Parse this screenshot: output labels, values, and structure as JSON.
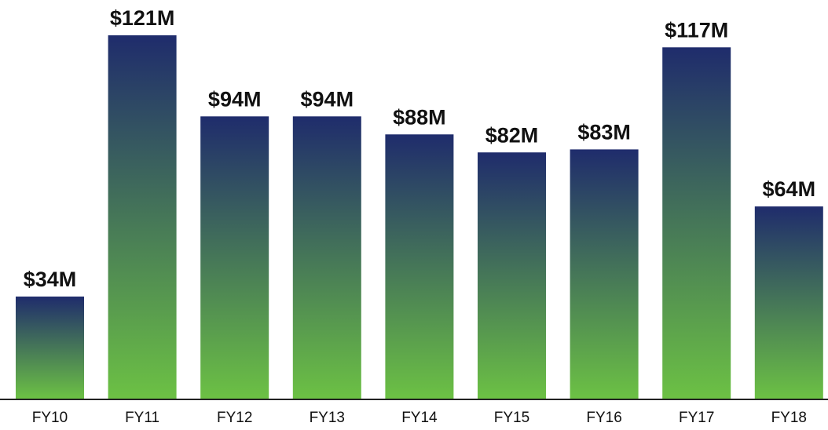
{
  "chart_data": {
    "type": "bar",
    "categories": [
      "FY10",
      "FY11",
      "FY12",
      "FY13",
      "FY14",
      "FY15",
      "FY16",
      "FY17",
      "FY18"
    ],
    "values": [
      34,
      121,
      94,
      94,
      88,
      82,
      83,
      117,
      64
    ],
    "value_labels": [
      "$34M",
      "$121M",
      "$94M",
      "$94M",
      "$88M",
      "$82M",
      "$83M",
      "$117M",
      "$64M"
    ],
    "gradient": [
      "#1f2c6c",
      "#6cc144"
    ]
  }
}
